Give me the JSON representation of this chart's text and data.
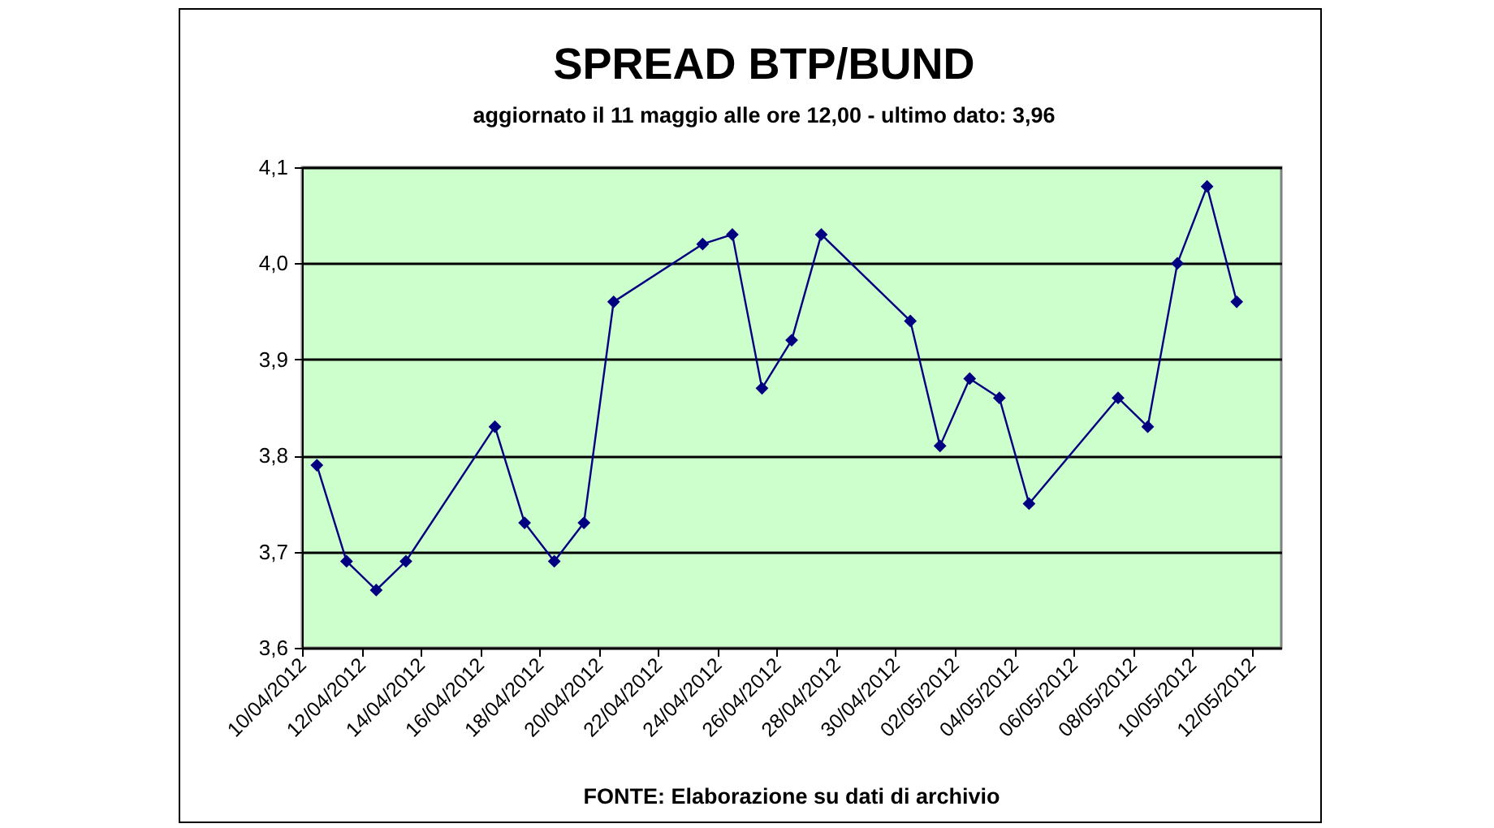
{
  "chart_data": {
    "type": "line",
    "title": "SPREAD BTP/BUND",
    "subtitle": "aggiornato il 11 maggio alle ore 12,00 - ultimo dato: 3,96",
    "annotations": [
      "FONTE: Elaborazione su dati di archivio"
    ],
    "x": [
      "2012-04-10T12:00",
      "2012-04-11T12:00",
      "2012-04-12T12:00",
      "2012-04-13T12:00",
      "2012-04-16T12:00",
      "2012-04-17T12:00",
      "2012-04-18T12:00",
      "2012-04-19T12:00",
      "2012-04-20T12:00",
      "2012-04-23T12:00",
      "2012-04-24T12:00",
      "2012-04-25T12:00",
      "2012-04-26T12:00",
      "2012-04-27T12:00",
      "2012-04-30T12:00",
      "2012-05-01T12:00",
      "2012-05-02T12:00",
      "2012-05-03T12:00",
      "2012-05-04T12:00",
      "2012-05-07T12:00",
      "2012-05-08T12:00",
      "2012-05-09T12:00",
      "2012-05-10T12:00",
      "2012-05-11T12:00"
    ],
    "series": [
      {
        "color": "#000080",
        "values": [
          3.79,
          3.69,
          3.66,
          3.69,
          3.83,
          3.73,
          3.69,
          3.73,
          3.96,
          4.02,
          4.03,
          3.87,
          3.92,
          4.03,
          3.94,
          3.81,
          3.88,
          3.86,
          3.75,
          3.86,
          3.83,
          4.0,
          4.08,
          3.96
        ]
      }
    ],
    "xlim": [
      "2012-04-10",
      "2012-05-13"
    ],
    "xticks": [
      {
        "value": "2012-04-10",
        "label": "10/04/2012"
      },
      {
        "value": "2012-04-12",
        "label": "12/04/2012"
      },
      {
        "value": "2012-04-14",
        "label": "14/04/2012"
      },
      {
        "value": "2012-04-16",
        "label": "16/04/2012"
      },
      {
        "value": "2012-04-18",
        "label": "18/04/2012"
      },
      {
        "value": "2012-04-20",
        "label": "20/04/2012"
      },
      {
        "value": "2012-04-22",
        "label": "22/04/2012"
      },
      {
        "value": "2012-04-24",
        "label": "24/04/2012"
      },
      {
        "value": "2012-04-26",
        "label": "26/04/2012"
      },
      {
        "value": "2012-04-28",
        "label": "28/04/2012"
      },
      {
        "value": "2012-04-30",
        "label": "30/04/2012"
      },
      {
        "value": "2012-05-02",
        "label": "02/05/2012"
      },
      {
        "value": "2012-05-04",
        "label": "04/05/2012"
      },
      {
        "value": "2012-05-06",
        "label": "06/05/2012"
      },
      {
        "value": "2012-05-08",
        "label": "08/05/2012"
      },
      {
        "value": "2012-05-10",
        "label": "10/05/2012"
      },
      {
        "value": "2012-05-12",
        "label": "12/05/2012"
      }
    ],
    "ylim": [
      3.6,
      4.1
    ],
    "yticks": [
      {
        "value": 3.6,
        "label": "3,6"
      },
      {
        "value": 3.7,
        "label": "3,7"
      },
      {
        "value": 3.8,
        "label": "3,8"
      },
      {
        "value": 3.9,
        "label": "3,9"
      },
      {
        "value": 4.0,
        "label": "4,0"
      },
      {
        "value": 4.1,
        "label": "4,1"
      }
    ],
    "grid": "y",
    "marker": "diamond",
    "line_style": "solid"
  }
}
